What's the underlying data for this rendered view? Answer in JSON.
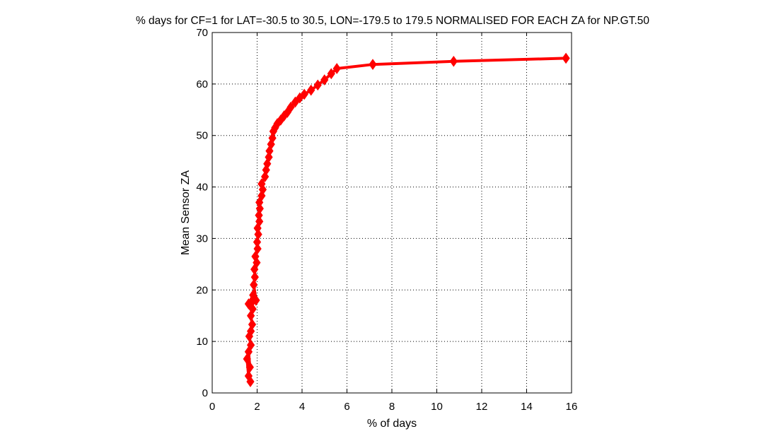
{
  "chart_data": {
    "type": "line",
    "title": "% days for CF=1 for LAT=-30.5 to 30.5, LON=-179.5 to 179.5 NORMALISED FOR EACH ZA for NP.GT.50",
    "xlabel": "% of days",
    "ylabel": "Mean Sensor ZA",
    "xlim": [
      0,
      16
    ],
    "ylim": [
      0,
      70
    ],
    "xticks": [
      0,
      2,
      4,
      6,
      8,
      10,
      12,
      14,
      16
    ],
    "yticks": [
      0,
      10,
      20,
      30,
      40,
      50,
      60,
      70
    ],
    "grid": true,
    "marker": "diamond",
    "color": "#ff0000",
    "series": [
      {
        "x": [
          1.7,
          1.62,
          1.55,
          1.68,
          1.62,
          1.72,
          1.65,
          1.72,
          1.78,
          1.72,
          1.8,
          1.75,
          1.62,
          1.82,
          1.95,
          1.85,
          1.9,
          1.88,
          1.98,
          1.92,
          2.02,
          2.0,
          2.05,
          2.02,
          2.1,
          2.08,
          2.12,
          2.1,
          2.2,
          2.25,
          2.2,
          2.35,
          2.4,
          2.45,
          2.52,
          2.55,
          2.62,
          2.68,
          2.72,
          2.8,
          2.9,
          3.05,
          3.2,
          3.35,
          3.5,
          3.7,
          3.9,
          4.1,
          4.4,
          4.7,
          5.0,
          5.3,
          5.55,
          7.15,
          10.75,
          15.75
        ],
        "y": [
          2.2,
          3.3,
          6.6,
          5.0,
          8.0,
          9.3,
          11.0,
          12.0,
          13.3,
          15.0,
          16.3,
          17.5,
          17.3,
          19.0,
          18.0,
          21.0,
          22.5,
          24.0,
          25.3,
          26.5,
          28.0,
          29.3,
          30.8,
          32.0,
          33.3,
          34.5,
          35.8,
          37.0,
          38.3,
          39.5,
          40.6,
          42.0,
          43.3,
          44.5,
          45.8,
          47.0,
          48.3,
          49.5,
          50.8,
          51.5,
          52.3,
          53.0,
          53.8,
          54.5,
          55.5,
          56.5,
          57.3,
          58.0,
          58.8,
          59.8,
          60.8,
          62.0,
          63.0,
          63.8,
          64.4,
          65.0
        ]
      }
    ]
  }
}
